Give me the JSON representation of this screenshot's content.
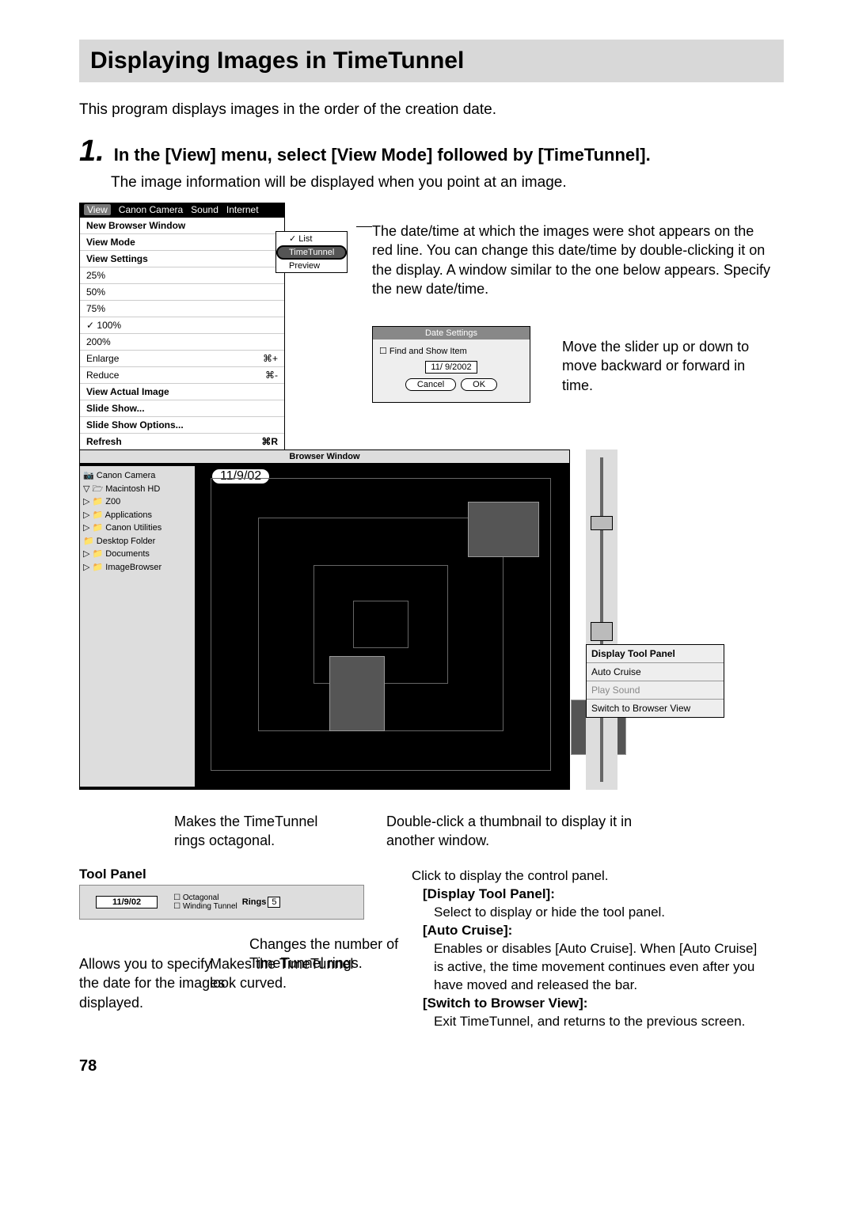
{
  "page": {
    "title": "Displaying Images in TimeTunnel",
    "intro": "This program displays images in the order of the creation date.",
    "step_number": "1.",
    "step_title": "In the [View] menu, select [View Mode] followed by [TimeTunnel].",
    "step_sub": "The image information will be displayed when you point at an image.",
    "page_number": "78"
  },
  "view_menu": {
    "bar_items": [
      "View",
      "Canon Camera",
      "Sound",
      "Internet"
    ],
    "items": [
      {
        "label": "New Browser Window",
        "bold": true
      },
      {
        "label": "View Mode",
        "bold": true
      },
      {
        "label": "View Settings",
        "bold": true
      },
      {
        "label": "25%"
      },
      {
        "label": "50%"
      },
      {
        "label": "75%"
      },
      {
        "label": "100%",
        "checked": true
      },
      {
        "label": "200%"
      },
      {
        "label": "Enlarge",
        "shortcut": "⌘+"
      },
      {
        "label": "Reduce",
        "shortcut": "⌘-"
      },
      {
        "label": "View Actual Image",
        "bold": true
      },
      {
        "label": "Slide Show...",
        "bold": true
      },
      {
        "label": "Slide Show Options...",
        "bold": true
      },
      {
        "label": "Refresh",
        "bold": true,
        "shortcut": "⌘R"
      }
    ],
    "submenu": [
      "List",
      "TimeTunnel",
      "Preview"
    ],
    "submenu_checked": "List",
    "submenu_highlight": "TimeTunnel"
  },
  "annot_date": "The date/time at which the images were shot appears on the red line. You can change this date/time by double-clicking it on the display. A window similar to the one below appears. Specify the new date/time.",
  "date_dialog": {
    "title": "Date Settings",
    "checkbox": "Find and Show Item",
    "value": "11/ 9/2002",
    "cancel": "Cancel",
    "ok": "OK"
  },
  "annot_slider": "Move the slider up or down to move backward or forward in time.",
  "browser": {
    "title": "Browser Window",
    "date_bubble": "11/9/02",
    "tree": [
      "📷 Canon Camera",
      "▽ 🗁 Macintosh HD",
      "▷   📁 Z00",
      "▷   📁 Applications",
      "▷   📁 Canon Utilities",
      "    📁 Desktop Folder",
      "▷   📁 Documents",
      "▷   📁 ImageBrowser"
    ]
  },
  "control_panel": {
    "items": [
      "Display Tool Panel",
      "Auto Cruise",
      "Play Sound",
      "Switch to Browser View"
    ],
    "dim_index": 2
  },
  "annot_thumb": "Double-click a thumbnail to display it in another window.",
  "annot_octagonal": "Makes the TimeTunnel rings octagonal.",
  "toolpanel_label": "Tool Panel",
  "tool_panel": {
    "date": "11/9/02",
    "opt1": "Octagonal",
    "opt2": "Winding Tunnel",
    "rings_label": "Rings",
    "rings_value": "5"
  },
  "annot_rings": "Changes the number of TimeTunnel rings.",
  "annot_datebox": "Allows you to specify the date for the images displayed.",
  "annot_curved": "Makes the TimeTunnel look curved.",
  "right": {
    "l1": "Click to display the control panel.",
    "h1": "[Display Tool Panel]:",
    "d1": "Select to display or hide the tool panel.",
    "h2": "[Auto Cruise]:",
    "d2": "Enables or disables [Auto Cruise]. When [Auto Cruise] is active, the time movement continues even after you have moved and released the bar.",
    "h3": "[Switch to Browser View]:",
    "d3": "Exit TimeTunnel, and returns to the previous screen."
  }
}
